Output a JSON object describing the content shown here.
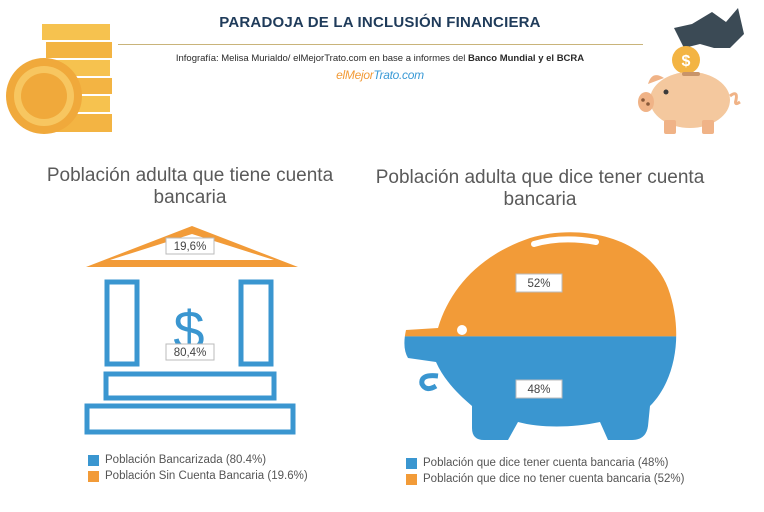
{
  "header": {
    "title": "PARADOJA DE LA INCLUSIÓN FINANCIERA",
    "credit_prefix": "Infografía: Melisa Murialdo/ elMejorTrato.com en base a informes del ",
    "credit_bold": "Banco Mundial y el BCRA",
    "brand_part1": "elMejor",
    "brand_part2": "Trato.com"
  },
  "colors": {
    "orange": "#f29b38",
    "blue": "#3a96d0",
    "gold": "#f6b94c",
    "navy": "#1f3b5a"
  },
  "icons": [
    "coin-stack-icon",
    "piggy-bank-coin-icon"
  ],
  "chart_data": [
    {
      "type": "pie",
      "title": "Población adulta que tiene cuenta bancaria",
      "categories": [
        "Población Bancarizada",
        "Población Sin Cuenta Bancaria"
      ],
      "values": [
        80.4,
        19.6
      ],
      "value_labels": [
        "80,4%",
        "19,6%"
      ],
      "legend_labels": [
        "Población Bancarizada (80.4%)",
        "Población Sin Cuenta Bancaria (19.6%)"
      ],
      "colors": [
        "#3a96d0",
        "#f29b38"
      ],
      "legend": "bottom-left"
    },
    {
      "type": "pie",
      "title": "Población adulta que dice tener cuenta bancaria",
      "categories": [
        "Población que dice tener cuenta bancaria",
        "Población que dice no tener cuenta bancaria"
      ],
      "values": [
        48,
        52
      ],
      "value_labels": [
        "48%",
        "52%"
      ],
      "legend_labels": [
        "Población que dice tener cuenta bancaria (48%)",
        "Población que dice no tener cuenta bancaria (52%)"
      ],
      "colors": [
        "#3a96d0",
        "#f29b38"
      ],
      "legend": "bottom-left"
    }
  ]
}
